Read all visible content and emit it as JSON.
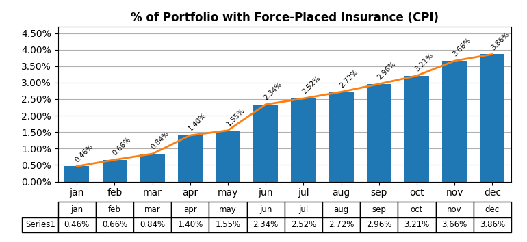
{
  "chart_data": {
    "type": "bar",
    "title": "% of Portfolio with Force-Placed Insurance (CPI)",
    "categories": [
      "jan",
      "feb",
      "mar",
      "apr",
      "may",
      "jun",
      "jul",
      "aug",
      "sep",
      "oct",
      "nov",
      "dec"
    ],
    "series": [
      {
        "name": "Series1",
        "type": "bar",
        "values": [
          0.0046,
          0.0066,
          0.0084,
          0.014,
          0.0155,
          0.0234,
          0.0252,
          0.0272,
          0.0296,
          0.0321,
          0.0366,
          0.0386
        ],
        "value_labels": [
          "0.46%",
          "0.66%",
          "0.84%",
          "1.40%",
          "1.55%",
          "2.34%",
          "2.52%",
          "2.72%",
          "2.96%",
          "3.21%",
          "3.66%",
          "3.86%"
        ]
      },
      {
        "type": "line",
        "values": [
          0.0046,
          0.0066,
          0.0084,
          0.014,
          0.0155,
          0.0234,
          0.0252,
          0.0272,
          0.0296,
          0.0321,
          0.0366,
          0.0386
        ]
      }
    ],
    "ylim": [
      0,
      0.047
    ],
    "yticks": [
      {
        "value": 0.0,
        "label": "0.00%"
      },
      {
        "value": 0.005,
        "label": "0.50%"
      },
      {
        "value": 0.01,
        "label": "1.00%"
      },
      {
        "value": 0.015,
        "label": "1.50%"
      },
      {
        "value": 0.02,
        "label": "2.00%"
      },
      {
        "value": 0.025,
        "label": "2.50%"
      },
      {
        "value": 0.03,
        "label": "3.00%"
      },
      {
        "value": 0.035,
        "label": "3.50%"
      },
      {
        "value": 0.04,
        "label": "4.00%"
      },
      {
        "value": 0.045,
        "label": "4.50%"
      }
    ],
    "grid": true,
    "data_labels": true
  }
}
